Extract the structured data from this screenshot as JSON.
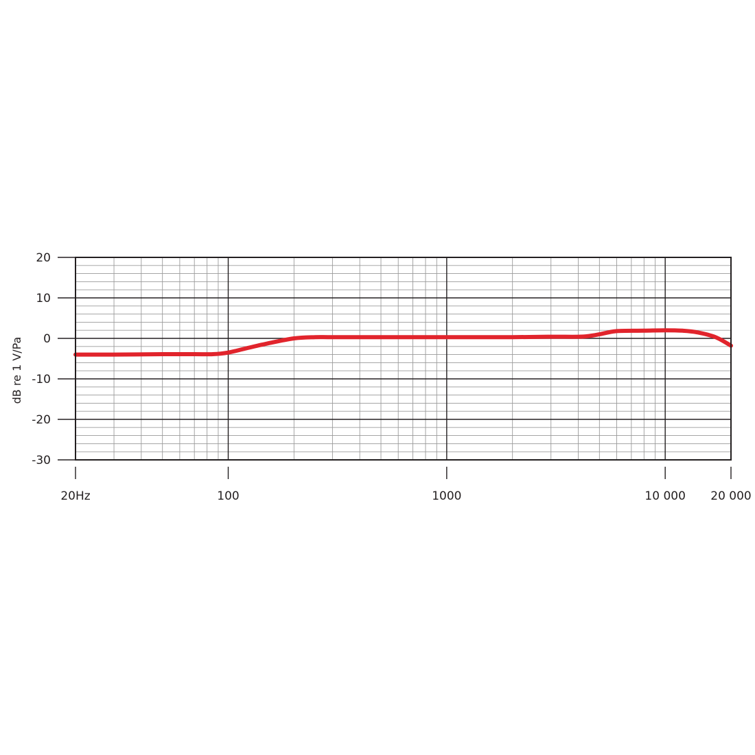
{
  "chart_data": {
    "type": "line",
    "xlabel": "",
    "ylabel": "dB re 1 V/Pa",
    "x_scale": "log",
    "xlim": [
      20,
      20000
    ],
    "ylim": [
      -30,
      20
    ],
    "grid": true,
    "x_ticks": [
      20,
      100,
      1000,
      10000,
      20000
    ],
    "x_tick_labels": [
      "20Hz",
      "100",
      "1000",
      "10 000",
      "20 000"
    ],
    "y_ticks": [
      20,
      10,
      0,
      -10,
      -20,
      -30
    ],
    "y_tick_labels": [
      "20",
      "10",
      "0",
      "-10",
      "-20",
      "-30"
    ],
    "series_color": "#e1242c",
    "series": [
      {
        "x": [
          20,
          30,
          50,
          70,
          85,
          100,
          120,
          150,
          200,
          250,
          300,
          500,
          1000,
          2000,
          3000,
          4000,
          4500,
          5000,
          6000,
          8000,
          10000,
          12000,
          14000,
          17000,
          20000
        ],
        "values": [
          -4,
          -4,
          -3.9,
          -3.9,
          -3.9,
          -3.5,
          -2.5,
          -1.3,
          0,
          0.3,
          0.3,
          0.3,
          0.3,
          0.3,
          0.4,
          0.4,
          0.6,
          1.0,
          1.8,
          1.9,
          2.0,
          1.9,
          1.5,
          0.3,
          -1.8
        ]
      }
    ]
  }
}
